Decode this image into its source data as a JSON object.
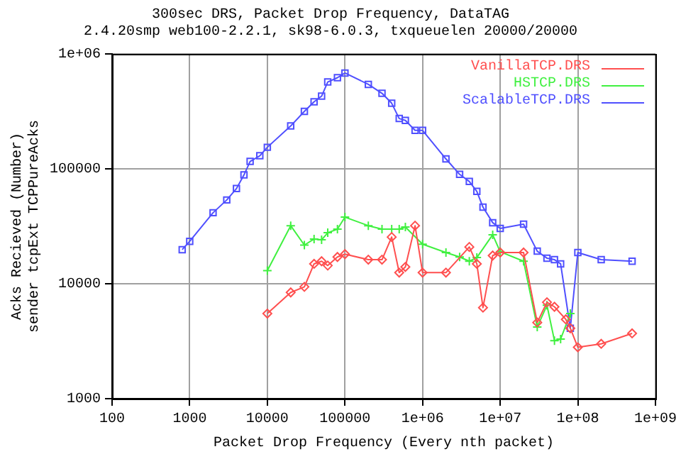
{
  "chart_data": {
    "type": "line",
    "title": "300sec DRS, Packet Drop Frequency, DataTAG",
    "subtitle": "2.4.20smp web100-2.2.1, sk98-6.0.3, txqueuelen 20000/20000",
    "xlabel": "Packet Drop Frequency (Every nth packet)",
    "ylabel": "Acks Recieved (Number)\nsender tcpExt TCPPureAcks",
    "log": "xy",
    "grid": true,
    "legend": "top right",
    "line_style": "solid",
    "xlim": [
      100,
      1000000000
    ],
    "xticks": [
      100,
      1000,
      10000,
      100000,
      {
        "value": 1000000,
        "label": "1e+06"
      },
      {
        "value": 10000000,
        "label": "1e+07"
      },
      {
        "value": 100000000,
        "label": "1e+08"
      },
      {
        "value": 1000000000,
        "label": "1e+09"
      }
    ],
    "ylim": [
      1000,
      1000000
    ],
    "yticks": [
      1000,
      10000,
      100000,
      {
        "value": 1000000,
        "label": "1e+06"
      }
    ],
    "series": [
      {
        "name": "VanillaTCP.DRS",
        "color": "#ff4f4f",
        "marker": "diamond",
        "x": [
          10000,
          20000,
          30000,
          40000,
          50000,
          60000,
          80000,
          100000,
          200000,
          300000,
          400000,
          500000,
          600000,
          800000,
          1000000,
          2000000,
          4000000,
          5000000,
          6000000,
          8000000,
          10000000,
          20000000,
          30000000,
          40000000,
          50000000,
          70000000,
          80000000,
          100000000,
          200000000,
          500000000
        ],
        "values": [
          5500,
          8400,
          9400,
          14900,
          15700,
          14400,
          17100,
          18100,
          16200,
          16200,
          25500,
          12500,
          14000,
          32000,
          12500,
          12500,
          20900,
          14900,
          6200,
          17600,
          18700,
          18700,
          4600,
          6900,
          6300,
          4900,
          4100,
          2800,
          3000,
          3700
        ]
      },
      {
        "name": "HSTCP.DRS",
        "color": "#40f040",
        "marker": "cross",
        "x": [
          10000,
          20000,
          30000,
          40000,
          50000,
          60000,
          80000,
          100000,
          200000,
          300000,
          400000,
          500000,
          600000,
          1000000,
          2000000,
          3000000,
          4000000,
          5000000,
          8000000,
          10000000,
          20000000,
          30000000,
          40000000,
          50000000,
          60000000,
          80000000
        ],
        "values": [
          13000,
          32000,
          21700,
          24500,
          24100,
          27800,
          29900,
          38000,
          32000,
          29900,
          29900,
          29900,
          31200,
          22100,
          18700,
          17100,
          15700,
          16900,
          26700,
          19000,
          15700,
          4200,
          6500,
          3200,
          3300,
          5500
        ]
      },
      {
        "name": "ScalableTCP.DRS",
        "color": "#4f4fff",
        "marker": "square",
        "x": [
          800,
          1000,
          2000,
          3000,
          4000,
          5000,
          6000,
          8000,
          10000,
          20000,
          30000,
          40000,
          50000,
          60000,
          80000,
          100000,
          200000,
          300000,
          400000,
          500000,
          600000,
          800000,
          1000000,
          2000000,
          3000000,
          4000000,
          5000000,
          6000000,
          8000000,
          10000000,
          20000000,
          30000000,
          40000000,
          50000000,
          60000000,
          80000000,
          100000000,
          200000000,
          500000000
        ],
        "values": [
          19800,
          23400,
          41500,
          53600,
          67300,
          88500,
          116000,
          130000,
          154000,
          236000,
          316000,
          383000,
          429000,
          570000,
          621000,
          682000,
          543000,
          454000,
          372000,
          274000,
          264000,
          216000,
          216000,
          122000,
          89500,
          77600,
          63600,
          46400,
          34000,
          30300,
          33000,
          19200,
          16700,
          16200,
          14900,
          4100,
          18700,
          16200,
          15700
        ]
      }
    ]
  }
}
